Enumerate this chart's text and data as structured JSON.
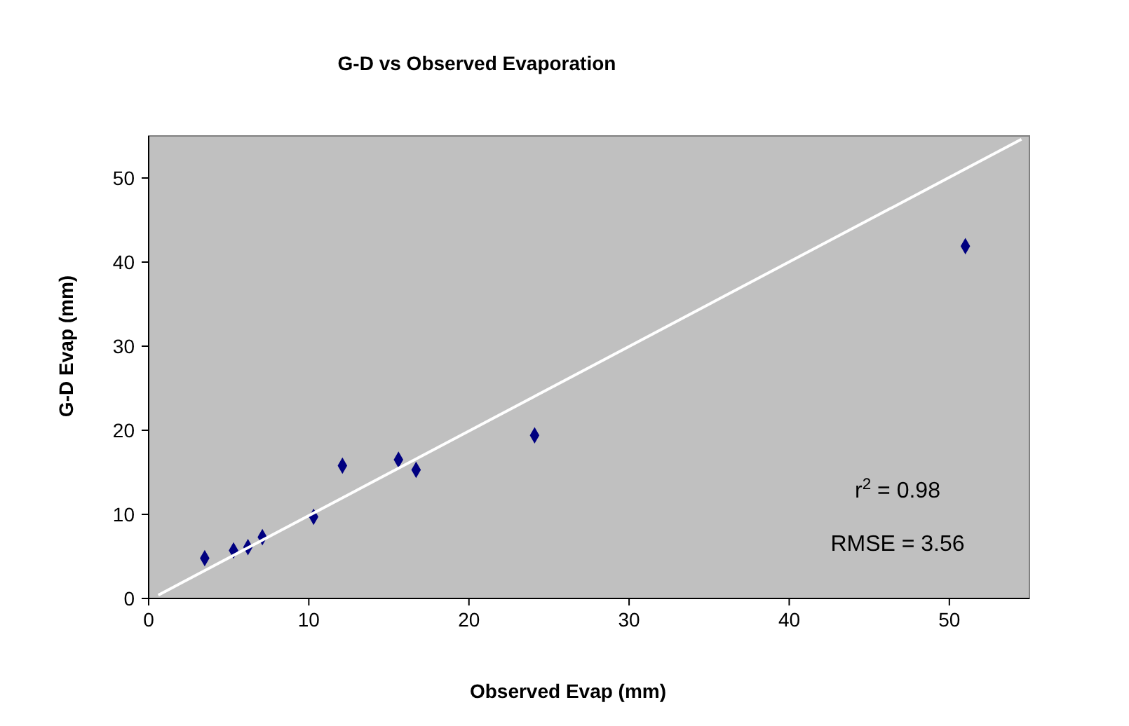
{
  "chart_data": {
    "type": "scatter",
    "title": "G-D vs Observed Evaporation",
    "xlabel": "Observed Evap (mm)",
    "ylabel": "G-D Evap (mm)",
    "xlim": [
      0,
      55
    ],
    "ylim": [
      0,
      55
    ],
    "xticks": [
      0,
      10,
      20,
      30,
      40,
      50
    ],
    "yticks": [
      0,
      10,
      20,
      30,
      40,
      50
    ],
    "grid": false,
    "marker": "diamond",
    "annotations": [
      "r$^{2}$ = 0.98",
      "RMSE = 3.56"
    ],
    "series": [
      {
        "color": "#000080",
        "x": [
          3.5,
          5.3,
          6.2,
          7.1,
          10.3,
          12.1,
          15.6,
          16.7,
          24.1,
          51.0
        ],
        "values": [
          4.8,
          5.7,
          6.1,
          7.3,
          9.7,
          15.8,
          16.5,
          15.3,
          19.4,
          41.9
        ]
      },
      {
        "type": "line",
        "color": "#ffffff",
        "marker": "none",
        "line_style": "solid",
        "x": [
          0.6,
          54.5
        ],
        "values": [
          0.4,
          54.6
        ]
      }
    ]
  }
}
